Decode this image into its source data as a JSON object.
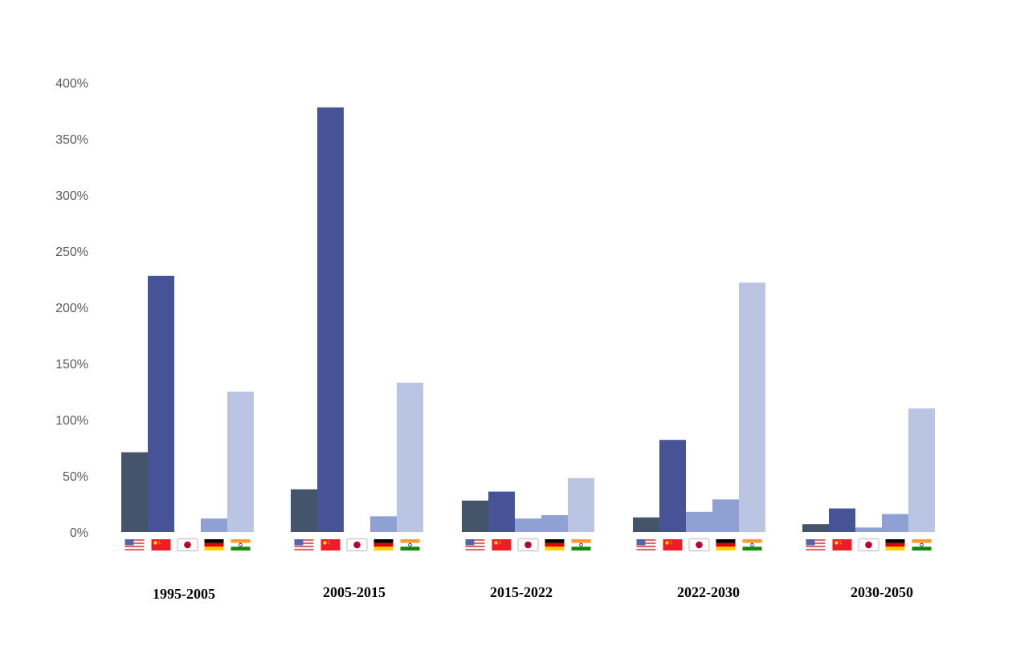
{
  "chart_data": {
    "type": "bar",
    "title": "",
    "xlabel": "",
    "ylabel": "",
    "ylim": [
      0,
      400
    ],
    "y_ticks": [
      "0%",
      "50%",
      "100%",
      "150%",
      "200%",
      "250%",
      "300%",
      "350%",
      "400%"
    ],
    "y_tick_values": [
      0,
      50,
      100,
      150,
      200,
      250,
      300,
      350,
      400
    ],
    "grid": false,
    "legend": "none (country flags under each bar)",
    "categories": [
      "1995-2005",
      "2005-2015",
      "2015-2022",
      "2022-2030",
      "2030-2050"
    ],
    "series": [
      {
        "country": "United States",
        "flag": "us-flag-icon",
        "color": "#44546A",
        "values": [
          71,
          38,
          28,
          13,
          7
        ]
      },
      {
        "country": "China",
        "flag": "china-flag-icon",
        "color": "#465497",
        "values": [
          228,
          378,
          36,
          82,
          21
        ]
      },
      {
        "country": "Japan",
        "flag": "japan-flag-icon",
        "color": "#8FA1D3",
        "values": [
          0,
          0,
          12,
          18,
          4
        ]
      },
      {
        "country": "Germany",
        "flag": "germany-flag-icon",
        "color": "#8FA1D3",
        "values": [
          12,
          14,
          15,
          29,
          16
        ]
      },
      {
        "country": "India",
        "flag": "india-flag-icon",
        "color": "#BAC5E3",
        "values": [
          125,
          133,
          48,
          222,
          110
        ]
      }
    ]
  }
}
